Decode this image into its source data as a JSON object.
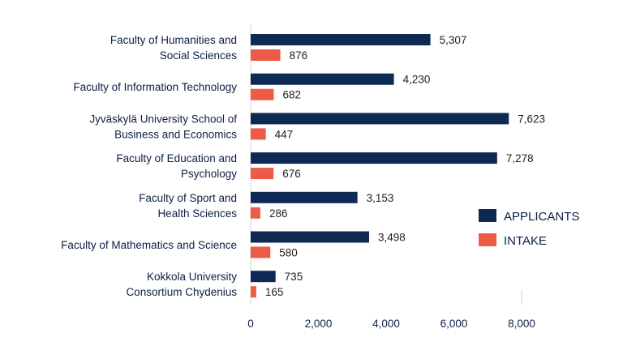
{
  "colors": {
    "applicants": "#0e2a54",
    "intake": "#ee5a45",
    "axis": "#d6d6d6",
    "text": "#0e1f45"
  },
  "chart_data": {
    "type": "bar",
    "orientation": "horizontal",
    "title": "",
    "xlabel": "",
    "ylabel": "",
    "xlim": [
      0,
      8000
    ],
    "ticks": [
      0,
      2000,
      4000,
      6000,
      8000
    ],
    "tick_labels": [
      "0",
      "2,000",
      "4,000",
      "6,000",
      "8,000"
    ],
    "categories": [
      [
        "Faculty of Humanities and",
        "Social Sciences"
      ],
      [
        "Faculty of Information Technology"
      ],
      [
        "Jyväskylä University School of",
        "Business and Economics"
      ],
      [
        "Faculty of Education and",
        "Psychology"
      ],
      [
        "Faculty of Sport and",
        "Health Sciences"
      ],
      [
        "Faculty of Mathematics and Science"
      ],
      [
        "Kokkola University",
        "Consortium Chydenius"
      ]
    ],
    "series": [
      {
        "name": "APPLICANTS",
        "values": [
          5307,
          4230,
          7623,
          7278,
          3153,
          3498,
          735
        ],
        "labels": [
          "5,307",
          "4,230",
          "7,623",
          "7,278",
          "3,153",
          "3,498",
          "735"
        ]
      },
      {
        "name": "INTAKE",
        "values": [
          876,
          682,
          447,
          676,
          286,
          580,
          165
        ],
        "labels": [
          "876",
          "682",
          "447",
          "676",
          "286",
          "580",
          "165"
        ]
      }
    ],
    "legend_position": "right"
  }
}
